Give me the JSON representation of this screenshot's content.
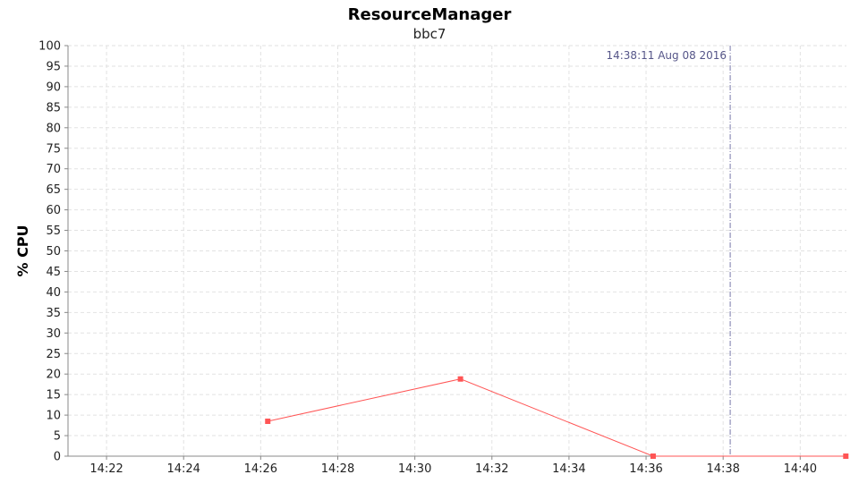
{
  "chart_data": {
    "type": "line",
    "title": "ResourceManager",
    "subtitle": "bbc7",
    "ylabel": "% CPU",
    "xlabel": "",
    "ylim": [
      0,
      100
    ],
    "yticks": [
      0,
      5,
      10,
      15,
      20,
      25,
      30,
      35,
      40,
      45,
      50,
      55,
      60,
      65,
      70,
      75,
      80,
      85,
      90,
      95,
      100
    ],
    "xlim": [
      "14:21:00",
      "14:41:12"
    ],
    "xticks": [
      "14:22",
      "14:24",
      "14:26",
      "14:28",
      "14:30",
      "14:32",
      "14:34",
      "14:36",
      "14:38",
      "14:40"
    ],
    "grid": true,
    "series": [
      {
        "color": "#ff5555",
        "x": [
          "14:26:11",
          "14:31:11",
          "14:36:11",
          "14:41:11"
        ],
        "values": [
          8.5,
          18.8,
          0,
          0
        ]
      }
    ],
    "marker": {
      "time": "14:38:11",
      "label": "14:38:11 Aug 08 2016",
      "color": "#7777aa"
    }
  }
}
